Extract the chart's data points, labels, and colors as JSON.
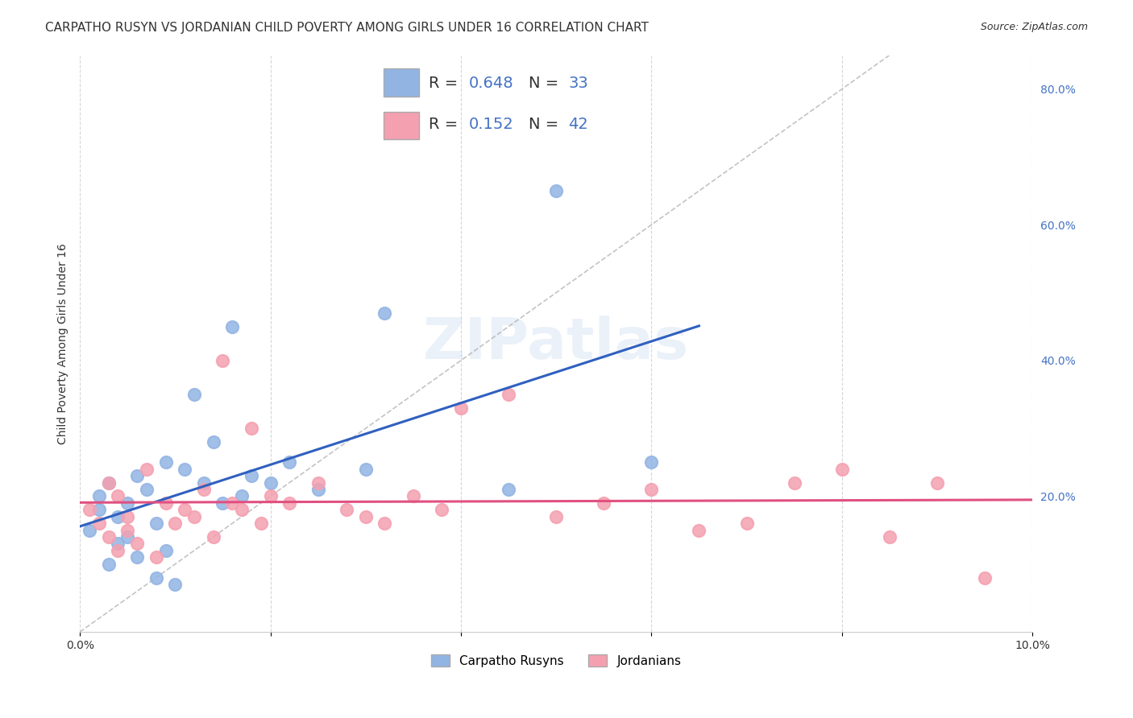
{
  "title": "CARPATHO RUSYN VS JORDANIAN CHILD POVERTY AMONG GIRLS UNDER 16 CORRELATION CHART",
  "source": "Source: ZipAtlas.com",
  "xlabel": "",
  "ylabel": "Child Poverty Among Girls Under 16",
  "xlim": [
    0,
    0.1
  ],
  "ylim": [
    0,
    0.85
  ],
  "x_ticks": [
    0.0,
    0.02,
    0.04,
    0.06,
    0.08,
    0.1
  ],
  "x_tick_labels": [
    "0.0%",
    "",
    "",
    "",
    "",
    "10.0%"
  ],
  "y_ticks_right": [
    0.0,
    0.2,
    0.4,
    0.6,
    0.8
  ],
  "y_tick_labels_right": [
    "",
    "20.0%",
    "40.0%",
    "60.0%",
    "80.0%"
  ],
  "legend_r_blue": "R = 0.648",
  "legend_n_blue": "N = 33",
  "legend_r_pink": "R = 0.152",
  "legend_n_pink": "N = 42",
  "legend_label_blue": "Carpatho Rusyns",
  "legend_label_pink": "Jordanians",
  "blue_color": "#92b4e3",
  "pink_color": "#f4a0b0",
  "blue_line_color": "#3060c0",
  "pink_line_color": "#e05080",
  "blue_scatter_x": [
    0.001,
    0.002,
    0.002,
    0.003,
    0.003,
    0.004,
    0.004,
    0.005,
    0.005,
    0.006,
    0.006,
    0.007,
    0.008,
    0.008,
    0.009,
    0.009,
    0.01,
    0.011,
    0.012,
    0.013,
    0.014,
    0.015,
    0.016,
    0.017,
    0.018,
    0.02,
    0.022,
    0.025,
    0.03,
    0.032,
    0.045,
    0.05,
    0.06
  ],
  "blue_scatter_y": [
    0.15,
    0.18,
    0.2,
    0.1,
    0.22,
    0.13,
    0.17,
    0.14,
    0.19,
    0.11,
    0.23,
    0.21,
    0.16,
    0.08,
    0.25,
    0.12,
    0.07,
    0.24,
    0.35,
    0.22,
    0.28,
    0.19,
    0.45,
    0.2,
    0.23,
    0.22,
    0.25,
    0.21,
    0.24,
    0.47,
    0.21,
    0.65,
    0.25
  ],
  "pink_scatter_x": [
    0.001,
    0.002,
    0.003,
    0.003,
    0.004,
    0.004,
    0.005,
    0.005,
    0.006,
    0.007,
    0.008,
    0.009,
    0.01,
    0.011,
    0.012,
    0.013,
    0.014,
    0.015,
    0.016,
    0.017,
    0.018,
    0.019,
    0.02,
    0.022,
    0.025,
    0.028,
    0.03,
    0.032,
    0.035,
    0.038,
    0.04,
    0.045,
    0.05,
    0.055,
    0.06,
    0.065,
    0.07,
    0.075,
    0.08,
    0.085,
    0.09,
    0.095
  ],
  "pink_scatter_y": [
    0.18,
    0.16,
    0.14,
    0.22,
    0.12,
    0.2,
    0.15,
    0.17,
    0.13,
    0.24,
    0.11,
    0.19,
    0.16,
    0.18,
    0.17,
    0.21,
    0.14,
    0.4,
    0.19,
    0.18,
    0.3,
    0.16,
    0.2,
    0.19,
    0.22,
    0.18,
    0.17,
    0.16,
    0.2,
    0.18,
    0.33,
    0.35,
    0.17,
    0.19,
    0.21,
    0.15,
    0.16,
    0.22,
    0.24,
    0.14,
    0.22,
    0.08
  ],
  "background_color": "#ffffff",
  "grid_color": "#cccccc",
  "title_fontsize": 11,
  "axis_label_fontsize": 10,
  "tick_fontsize": 10
}
